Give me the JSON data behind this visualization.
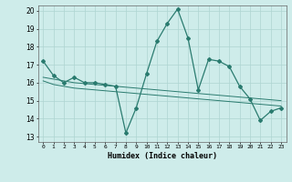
{
  "xlabel": "Humidex (Indice chaleur)",
  "x_data": [
    0,
    1,
    2,
    3,
    4,
    5,
    6,
    7,
    8,
    9,
    10,
    11,
    12,
    13,
    14,
    15,
    16,
    17,
    18,
    19,
    20,
    21,
    22,
    23
  ],
  "y_main": [
    17.2,
    16.4,
    16.0,
    16.3,
    16.0,
    16.0,
    15.9,
    15.8,
    13.2,
    14.6,
    16.5,
    18.3,
    19.3,
    20.1,
    18.5,
    15.6,
    17.3,
    17.2,
    16.9,
    15.8,
    15.1,
    13.9,
    14.4,
    14.6
  ],
  "y_trend1": [
    16.1,
    15.9,
    15.8,
    15.7,
    15.65,
    15.6,
    15.55,
    15.5,
    15.45,
    15.4,
    15.35,
    15.3,
    15.25,
    15.2,
    15.15,
    15.1,
    15.05,
    15.0,
    14.95,
    14.9,
    14.85,
    14.8,
    14.75,
    14.7
  ],
  "y_trend2": [
    16.3,
    16.2,
    16.1,
    16.0,
    15.95,
    15.9,
    15.85,
    15.8,
    15.75,
    15.7,
    15.65,
    15.6,
    15.55,
    15.5,
    15.45,
    15.4,
    15.35,
    15.3,
    15.25,
    15.2,
    15.15,
    15.1,
    15.05,
    15.0
  ],
  "line_color": "#2a7b6f",
  "bg_color": "#ceecea",
  "grid_color": "#aed4d1",
  "ylim_min": 13,
  "ylim_max": 20,
  "xlim_min": -0.5,
  "xlim_max": 23.5
}
